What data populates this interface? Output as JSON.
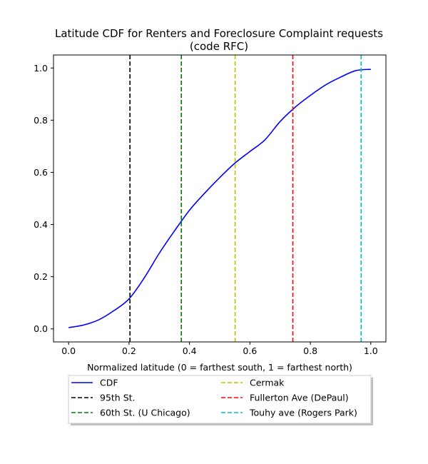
{
  "chart_data": {
    "type": "line",
    "title_line1": "Latitude CDF for Renters and Foreclosure Complaint  requests",
    "title_line2": "(code RFC)",
    "xlabel": "Normalized latitude (0 = farthest south, 1 = farthest north)",
    "ylabel": "",
    "xlim": [
      -0.05,
      1.05
    ],
    "ylim": [
      -0.05,
      1.05
    ],
    "xticks": [
      0.0,
      0.2,
      0.4,
      0.6,
      0.8,
      1.0
    ],
    "yticks": [
      0.0,
      0.2,
      0.4,
      0.6,
      0.8,
      1.0
    ],
    "xtick_labels": [
      "0.0",
      "0.2",
      "0.4",
      "0.6",
      "0.8",
      "1.0"
    ],
    "ytick_labels": [
      "0.0",
      "0.2",
      "0.4",
      "0.6",
      "0.8",
      "1.0"
    ],
    "grid": false,
    "legend_position": "below plot",
    "series": [
      {
        "name": "CDF",
        "color": "#0000ff",
        "style": "solid",
        "x": [
          0.0,
          0.05,
          0.1,
          0.15,
          0.2,
          0.25,
          0.3,
          0.35,
          0.4,
          0.45,
          0.5,
          0.55,
          0.6,
          0.65,
          0.7,
          0.75,
          0.8,
          0.85,
          0.9,
          0.95,
          1.0
        ],
        "y": [
          0.005,
          0.015,
          0.035,
          0.07,
          0.115,
          0.195,
          0.29,
          0.375,
          0.455,
          0.52,
          0.58,
          0.635,
          0.68,
          0.725,
          0.795,
          0.85,
          0.895,
          0.935,
          0.965,
          0.99,
          0.995
        ]
      }
    ],
    "vlines": [
      {
        "name": "95th St.",
        "x": 0.203,
        "color": "#000000"
      },
      {
        "name": "60th St. (U Chicago)",
        "x": 0.373,
        "color": "#008000"
      },
      {
        "name": "Cermak",
        "x": 0.551,
        "color": "#bfbf00"
      },
      {
        "name": "Fullerton Ave (DePaul)",
        "x": 0.742,
        "color": "#ff0000"
      },
      {
        "name": "Touhy ave (Rogers Park)",
        "x": 0.968,
        "color": "#00bfbf"
      }
    ],
    "legend": [
      {
        "label": "CDF",
        "color": "#0000ff",
        "style": "solid"
      },
      {
        "label": "95th St.",
        "color": "#000000",
        "style": "dashed"
      },
      {
        "label": "60th St. (U Chicago)",
        "color": "#008000",
        "style": "dashed"
      },
      {
        "label": "Cermak",
        "color": "#bfbf00",
        "style": "dashed"
      },
      {
        "label": "Fullerton Ave (DePaul)",
        "color": "#ff0000",
        "style": "dashed"
      },
      {
        "label": "Touhy ave (Rogers Park)",
        "color": "#00bfbf",
        "style": "dashed"
      }
    ]
  }
}
